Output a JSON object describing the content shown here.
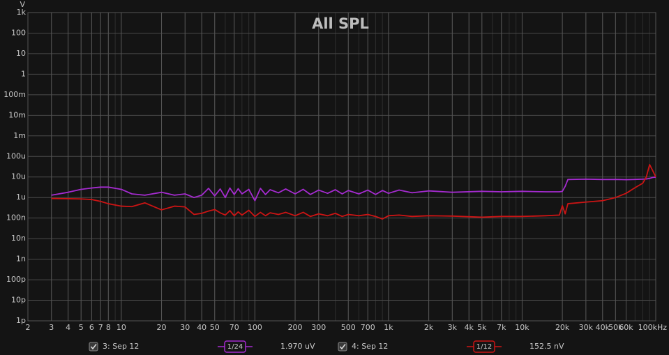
{
  "chart_data": {
    "type": "line",
    "title": "All SPL",
    "y_label": "V",
    "xscale": "log",
    "yscale": "log",
    "grid": true,
    "xlim": [
      2,
      100000
    ],
    "ylim": [
      1e-12,
      1000
    ],
    "xticks": [
      2,
      3,
      4,
      5,
      6,
      7,
      8,
      10,
      20,
      30,
      40,
      50,
      70,
      100,
      200,
      300,
      500,
      700,
      {
        "value": 1000,
        "label": "1k"
      },
      {
        "value": 2000,
        "label": "2k"
      },
      {
        "value": 3000,
        "label": "3k"
      },
      {
        "value": 4000,
        "label": "4k"
      },
      {
        "value": 5000,
        "label": "5k"
      },
      {
        "value": 7000,
        "label": "7k"
      },
      {
        "value": 10000,
        "label": "10k"
      },
      {
        "value": 20000,
        "label": "20k"
      },
      {
        "value": 30000,
        "label": "30k"
      },
      {
        "value": 40000,
        "label": "40k"
      },
      {
        "value": 50000,
        "label": "50k"
      },
      {
        "value": 60000,
        "label": "60k"
      },
      {
        "value": 100000,
        "label": "100kHz"
      }
    ],
    "yticks": [
      {
        "value": 1e-12,
        "label": "1p"
      },
      {
        "value": 1e-11,
        "label": "10p"
      },
      {
        "value": 1e-10,
        "label": "100p"
      },
      {
        "value": 1e-09,
        "label": "1n"
      },
      {
        "value": 1e-08,
        "label": "10n"
      },
      {
        "value": 1e-07,
        "label": "100n"
      },
      {
        "value": 1e-06,
        "label": "1u"
      },
      {
        "value": 1e-05,
        "label": "10u"
      },
      {
        "value": 0.0001,
        "label": "100u"
      },
      {
        "value": 0.001,
        "label": "1m"
      },
      {
        "value": 0.01,
        "label": "10m"
      },
      {
        "value": 0.1,
        "label": "100m"
      },
      1,
      10,
      100,
      {
        "value": 1000,
        "label": "1k"
      }
    ],
    "x": [
      3,
      4,
      5,
      6,
      7,
      8,
      10,
      12,
      15,
      20,
      25,
      30,
      35,
      40,
      45,
      50,
      55,
      60,
      65,
      70,
      75,
      80,
      90,
      100,
      110,
      120,
      130,
      150,
      170,
      200,
      230,
      260,
      300,
      350,
      400,
      450,
      500,
      600,
      700,
      800,
      900,
      1000,
      1200,
      1500,
      2000,
      3000,
      5000,
      7000,
      10000,
      15000,
      19000,
      20000,
      21000,
      22000,
      30000,
      40000,
      50000,
      60000,
      70000,
      80000,
      85000,
      90000,
      95000,
      100000
    ],
    "series": [
      {
        "name": "3: Sep 12",
        "color": "#a52bd0",
        "smoothing": "1/24",
        "cursor_value": "1.970 uV",
        "values": [
          1.3e-06,
          1.8e-06,
          2.5e-06,
          2.9e-06,
          3.2e-06,
          3.2e-06,
          2.5e-06,
          1.5e-06,
          1.3e-06,
          1.8e-06,
          1.3e-06,
          1.5e-06,
          1e-06,
          1.3e-06,
          2.8e-06,
          1.2e-06,
          2.6e-06,
          1e-06,
          2.9e-06,
          1.4e-06,
          2.7e-06,
          1.5e-06,
          2.5e-06,
          7e-07,
          2.8e-06,
          1.4e-06,
          2.4e-06,
          1.7e-06,
          2.6e-06,
          1.5e-06,
          2.5e-06,
          1.4e-06,
          2.3e-06,
          1.6e-06,
          2.4e-06,
          1.5e-06,
          2.2e-06,
          1.5e-06,
          2.3e-06,
          1.4e-06,
          2.2e-06,
          1.6e-06,
          2.3e-06,
          1.7e-06,
          2.1e-06,
          1.8e-06,
          2e-06,
          1.9e-06,
          2e-06,
          1.9e-06,
          1.9e-06,
          2e-06,
          3.5e-06,
          7.5e-06,
          7.8e-06,
          7.5e-06,
          7.6e-06,
          7.4e-06,
          7.6e-06,
          7.8e-06,
          8e-06,
          8.5e-06,
          9.5e-06,
          9.8e-06
        ]
      },
      {
        "name": "4: Sep 12",
        "color": "#cc1414",
        "smoothing": "1/12",
        "cursor_value": "152.5 nV",
        "values": [
          9e-07,
          8.8e-07,
          8.5e-07,
          8e-07,
          6.5e-07,
          5e-07,
          3.8e-07,
          3.6e-07,
          5.5e-07,
          2.5e-07,
          3.8e-07,
          3.5e-07,
          1.5e-07,
          1.7e-07,
          2.2e-07,
          2.6e-07,
          1.8e-07,
          1.4e-07,
          2.3e-07,
          1.3e-07,
          2e-07,
          1.4e-07,
          2.4e-07,
          1.2e-07,
          1.9e-07,
          1.3e-07,
          1.8e-07,
          1.5e-07,
          1.9e-07,
          1.3e-07,
          1.9e-07,
          1.2e-07,
          1.6e-07,
          1.3e-07,
          1.7e-07,
          1.2e-07,
          1.5e-07,
          1.3e-07,
          1.5e-07,
          1.2e-07,
          9e-08,
          1.3e-07,
          1.4e-07,
          1.2e-07,
          1.3e-07,
          1.25e-07,
          1.1e-07,
          1.2e-07,
          1.2e-07,
          1.3e-07,
          1.4e-07,
          4e-07,
          1.6e-07,
          5e-07,
          6e-07,
          7e-07,
          1e-06,
          1.6e-06,
          3e-06,
          5e-06,
          1e-05,
          4e-05,
          2e-05,
          1e-05
        ]
      }
    ]
  }
}
